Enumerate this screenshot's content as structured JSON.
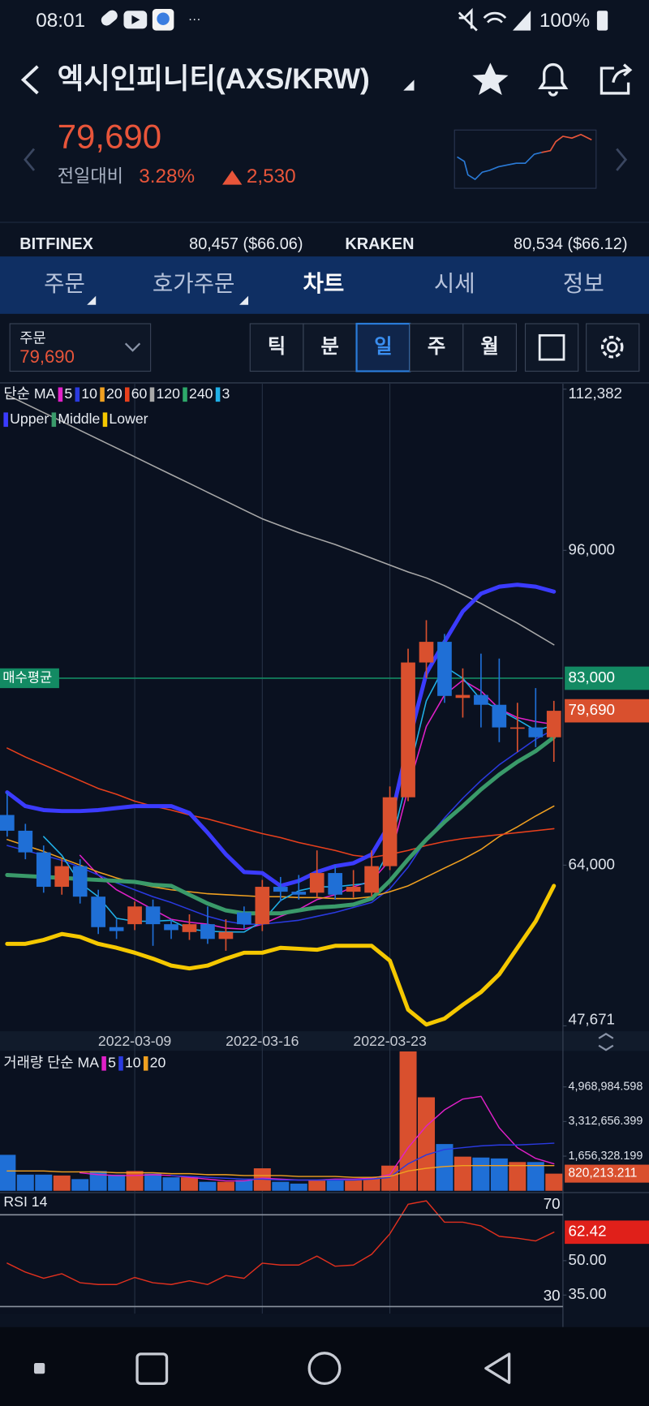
{
  "status_bar": {
    "time": "08:01",
    "battery": "100%"
  },
  "header": {
    "title": "엑시인피니티(AXS/KRW)",
    "price": "79,690",
    "change_label": "전일대비",
    "change_pct": "3.28%",
    "change_amount": "2,530"
  },
  "exchanges": [
    {
      "name": "BITFINEX",
      "price": "80,457 ($66.06)"
    },
    {
      "name": "KRAKEN",
      "price": "80,534 ($66.12)"
    }
  ],
  "tabs": [
    "주문",
    "호가주문",
    "차트",
    "시세",
    "정보"
  ],
  "order_box": {
    "label": "주문",
    "price": "79,690"
  },
  "periods": [
    "틱",
    "분",
    "일",
    "주",
    "월"
  ],
  "chart_data": [
    {
      "type": "candlestick",
      "legend_title": "단순 MA",
      "categories": [
        null,
        null,
        null,
        null,
        null,
        null,
        null,
        "2022-03-09",
        null,
        null,
        null,
        null,
        null,
        null,
        "2022-03-16",
        null,
        null,
        null,
        null,
        null,
        null,
        "2022-03-23",
        null,
        null,
        null,
        null,
        null,
        null,
        null,
        null,
        null
      ],
      "open": [
        69100,
        67500,
        65300,
        61800,
        63900,
        60800,
        57700,
        58000,
        59800,
        58000,
        57200,
        58000,
        56500,
        59200,
        58000,
        61800,
        61300,
        61200,
        63200,
        61300,
        61200,
        63900,
        70900,
        84600,
        86700,
        81000,
        81300,
        80300,
        77900,
        78000,
        77000
      ],
      "high": [
        71400,
        68200,
        66000,
        64600,
        64600,
        61500,
        58500,
        60300,
        60500,
        58500,
        59000,
        59800,
        58500,
        59800,
        62500,
        62800,
        63000,
        65500,
        64000,
        63500,
        65500,
        72000,
        86000,
        88900,
        87500,
        84000,
        85500,
        85000,
        80500,
        82000,
        80700
      ],
      "low": [
        66900,
        64600,
        61200,
        61000,
        60100,
        57000,
        56500,
        57400,
        55800,
        56500,
        56400,
        56000,
        55300,
        57500,
        57300,
        60300,
        60500,
        60700,
        60500,
        60700,
        60800,
        63500,
        70500,
        83000,
        80500,
        79000,
        78000,
        76500,
        75500,
        76000,
        74500
      ],
      "close": [
        67500,
        65300,
        61800,
        63900,
        60800,
        57700,
        57300,
        59800,
        58000,
        57400,
        58000,
        56500,
        57200,
        58000,
        61800,
        61300,
        61000,
        63200,
        61000,
        61800,
        63900,
        70900,
        84600,
        86700,
        81200,
        81300,
        80300,
        78000,
        78000,
        77000,
        79690
      ],
      "up_color": "#d9502e",
      "down_color": "#1f6fd6",
      "series": [
        {
          "name": "5",
          "color": "#e020c8",
          "values": [
            null,
            null,
            null,
            null,
            65000,
            63000,
            61500,
            60500,
            59500,
            58500,
            58200,
            58000,
            57600,
            57500,
            58000,
            58800,
            59500,
            60500,
            61000,
            61800,
            62400,
            64500,
            71800,
            78100,
            81300,
            82800,
            81700,
            79900,
            79000,
            78600,
            78300
          ]
        },
        {
          "name": "10",
          "color": "#2a3ae0",
          "values": [
            66000,
            65500,
            65000,
            64500,
            63800,
            63000,
            62200,
            61500,
            60800,
            60200,
            59500,
            58800,
            58300,
            58000,
            58000,
            58200,
            58400,
            58800,
            59200,
            59700,
            60200,
            61600,
            63800,
            66600,
            68800,
            70800,
            72600,
            74200,
            75500,
            76800,
            77800
          ]
        },
        {
          "name": "20",
          "color": "#f0a020",
          "values": [
            66600,
            66000,
            65400,
            64700,
            64000,
            63300,
            62700,
            62200,
            61800,
            61500,
            61300,
            61100,
            61000,
            60900,
            60800,
            60800,
            60700,
            60700,
            60600,
            60600,
            60800,
            61300,
            61900,
            62800,
            63700,
            64600,
            65600,
            66900,
            67900,
            69000,
            70000
          ]
        },
        {
          "name": "60",
          "color": "#e8401c",
          "values": [
            75900,
            75000,
            74200,
            73400,
            72600,
            71800,
            71200,
            70500,
            70000,
            69600,
            69100,
            68700,
            68200,
            67700,
            67200,
            66800,
            66300,
            65900,
            65500,
            65000,
            64800,
            65100,
            65500,
            66000,
            66400,
            66700,
            66900,
            67100,
            67300,
            67500,
            67700
          ]
        },
        {
          "name": "120",
          "color": "#a8a8a8",
          "values": [
            111800,
            110900,
            110000,
            109100,
            108200,
            107300,
            106400,
            105500,
            104600,
            103700,
            102800,
            101900,
            101000,
            100100,
            99200,
            98500,
            97800,
            97200,
            96600,
            95900,
            95200,
            94500,
            93800,
            93200,
            92400,
            91500,
            90600,
            89600,
            88600,
            87500,
            86400
          ]
        },
        {
          "name": "240",
          "color": "#2ea86a",
          "values": [
            null,
            null,
            null,
            null,
            null,
            null,
            null,
            null,
            null,
            null,
            null,
            null,
            null,
            null,
            null,
            null,
            null,
            null,
            null,
            null,
            null,
            null,
            null,
            null,
            null,
            null,
            null,
            null,
            null,
            null,
            null
          ]
        },
        {
          "name": "3",
          "color": "#20b0e8",
          "values": [
            null,
            null,
            66900,
            65000,
            62200,
            60800,
            58600,
            58300,
            58300,
            58400,
            57500,
            57300,
            57200,
            57200,
            58300,
            60400,
            61400,
            61800,
            61800,
            62000,
            62200,
            65600,
            73100,
            80700,
            84200,
            83000,
            80800,
            79800,
            78800,
            77700,
            78200
          ]
        },
        {
          "name": "Upper",
          "color": "#3b3bff",
          "values": [
            71400,
            70000,
            69600,
            69500,
            69500,
            69600,
            69800,
            70000,
            70000,
            70000,
            69300,
            67300,
            65100,
            63300,
            63200,
            61900,
            62400,
            63300,
            63900,
            64200,
            65100,
            68200,
            76300,
            83500,
            86700,
            89800,
            91600,
            92300,
            92500,
            92300,
            91800
          ]
        },
        {
          "name": "Middle",
          "color": "#3a9a6a",
          "values": [
            63000,
            62900,
            62800,
            62700,
            62600,
            62500,
            62400,
            62300,
            62000,
            61900,
            61000,
            60100,
            59400,
            59100,
            59100,
            59100,
            59400,
            59700,
            59800,
            60000,
            60600,
            62400,
            64600,
            66600,
            68400,
            70000,
            71700,
            73200,
            74500,
            75600,
            77000
          ]
        },
        {
          "name": "Lower",
          "color": "#f5c800",
          "values": [
            56000,
            56000,
            56400,
            57000,
            56700,
            56000,
            55600,
            55100,
            54500,
            53800,
            53500,
            53800,
            54500,
            55100,
            55100,
            55600,
            55500,
            55400,
            55800,
            55800,
            55800,
            54300,
            49300,
            47800,
            48400,
            49800,
            51100,
            52900,
            55600,
            58300,
            61900
          ]
        }
      ],
      "ylim": [
        47671,
        112382
      ],
      "yticks": [
        {
          "value": 112382,
          "label": "112,382"
        },
        {
          "value": 96000,
          "label": "96,000"
        },
        {
          "value": 64000,
          "label": "64,000"
        },
        {
          "value": 47671,
          "label": "47,671"
        }
      ],
      "reference_line": {
        "label": "매수평균",
        "value": 83000,
        "value_label": "83,000",
        "color": "#138a63"
      },
      "current_price": {
        "value": 79690,
        "label": "79,690"
      }
    },
    {
      "type": "bar",
      "legend_title": "거래량 단순 MA",
      "values": [
        1720000,
        774000,
        774000,
        731000,
        559000,
        946000,
        774000,
        946000,
        817000,
        645000,
        645000,
        430000,
        430000,
        516000,
        1075000,
        430000,
        344000,
        516000,
        516000,
        516000,
        602000,
        1204000,
        6665000,
        4472000,
        2236000,
        1634000,
        1591000,
        1548000,
        1376000,
        1376000,
        820213.211
      ],
      "series": [
        {
          "name": "5",
          "color": "#e020c8",
          "values": [
            null,
            null,
            null,
            null,
            860000,
            774000,
            731000,
            731000,
            774000,
            731000,
            645000,
            559000,
            473000,
            473000,
            602000,
            559000,
            516000,
            516000,
            559000,
            559000,
            602000,
            774000,
            2064000,
            3096000,
            3870000,
            4386000,
            4515000,
            3010000,
            2064000,
            1548000,
            1290000
          ]
        },
        {
          "name": "10",
          "color": "#2a3ae0",
          "values": [
            null,
            null,
            null,
            null,
            null,
            null,
            null,
            null,
            null,
            731000,
            688000,
            645000,
            602000,
            559000,
            559000,
            516000,
            516000,
            516000,
            516000,
            516000,
            559000,
            645000,
            1290000,
            1720000,
            1978000,
            2064000,
            2150000,
            2193000,
            2193000,
            2236000,
            2279000
          ]
        },
        {
          "name": "20",
          "color": "#f0a020",
          "values": [
            946000,
            946000,
            946000,
            903000,
            903000,
            903000,
            860000,
            860000,
            860000,
            817000,
            817000,
            774000,
            774000,
            731000,
            731000,
            731000,
            688000,
            688000,
            688000,
            645000,
            645000,
            688000,
            946000,
            1075000,
            1161000,
            1204000,
            1204000,
            1204000,
            1204000,
            1204000,
            1204000
          ]
        }
      ],
      "ylim": [
        0,
        6690000
      ],
      "yticks": [
        {
          "value": 4968984.598,
          "label": "4,968,984.598"
        },
        {
          "value": 3312656.399,
          "label": "3,312,656.399"
        },
        {
          "value": 1656328.199,
          "label": "1,656,328.199"
        }
      ],
      "current": {
        "value": 820213.211,
        "label": "820,213.211"
      }
    },
    {
      "type": "line",
      "title": "RSI 14",
      "color": "#e0301e",
      "values": [
        48.9,
        45,
        42.3,
        44.3,
        40.4,
        39.6,
        39.6,
        42.7,
        40.4,
        39.6,
        41.2,
        39.6,
        43.5,
        42.3,
        48.9,
        48.1,
        48.1,
        52,
        47.6,
        48.1,
        52.8,
        61.7,
        74.6,
        76.1,
        66.8,
        66.8,
        65.2,
        60.6,
        59.8,
        58.6,
        62.42
      ],
      "ylim": [
        26.9,
        79.3
      ],
      "bounds": [
        70,
        30
      ],
      "yticks": [
        {
          "value": 50,
          "label": "50.00"
        },
        {
          "value": 35,
          "label": "35.00"
        }
      ]
    }
  ]
}
